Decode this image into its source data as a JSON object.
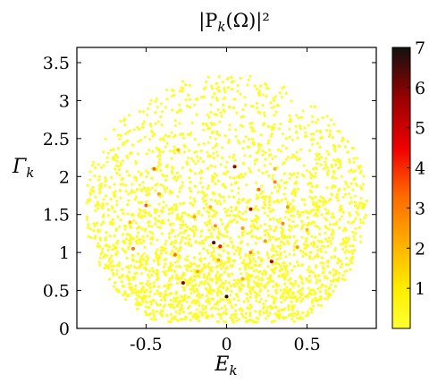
{
  "chart_data": {
    "type": "scatter",
    "title": "|P_k(Ω)|²",
    "xlabel": "E_k",
    "ylabel": "Γ_k",
    "xlim": [
      -0.93,
      0.93
    ],
    "ylim": [
      0,
      3.7
    ],
    "xticks": [
      -0.5,
      0,
      0.5
    ],
    "xtick_labels": [
      "-0.5",
      "0",
      "0.5"
    ],
    "yticks": [
      0,
      0.5,
      1,
      1.5,
      2,
      2.5,
      3,
      3.5
    ],
    "ytick_labels": [
      "0",
      "0.5",
      "1",
      "1.5",
      "2",
      "2.5",
      "3",
      "3.5"
    ],
    "grid": false,
    "colorbar": {
      "colormap": "hot_r",
      "range": [
        0,
        7
      ],
      "ticks": [
        1,
        2,
        3,
        4,
        5,
        6,
        7
      ],
      "tick_labels": [
        "1",
        "2",
        "3",
        "4",
        "5",
        "6",
        "7"
      ],
      "colors": [
        "#ffff33",
        "#ffee00",
        "#ffb000",
        "#ff6600",
        "#ee0000",
        "#990000",
        "#111111"
      ]
    },
    "highlighted_points": [
      {
        "x": 0.05,
        "y": 2.13,
        "value": 5.8
      },
      {
        "x": -0.45,
        "y": 2.1,
        "value": 3.5
      },
      {
        "x": 0.15,
        "y": 1.57,
        "value": 5.2
      },
      {
        "x": -0.08,
        "y": 1.13,
        "value": 6.5
      },
      {
        "x": -0.04,
        "y": 1.08,
        "value": 4.5
      },
      {
        "x": -0.27,
        "y": 0.6,
        "value": 6.0
      },
      {
        "x": 0.28,
        "y": 0.88,
        "value": 5.5
      },
      {
        "x": -0.32,
        "y": 0.97,
        "value": 3.2
      },
      {
        "x": 0.2,
        "y": 1.83,
        "value": 3.4
      },
      {
        "x": 0.3,
        "y": 1.93,
        "value": 3.0
      },
      {
        "x": -0.5,
        "y": 1.62,
        "value": 3.6
      },
      {
        "x": -0.58,
        "y": 1.05,
        "value": 3.2
      },
      {
        "x": 0.0,
        "y": 0.42,
        "value": 6.8
      },
      {
        "x": 0.1,
        "y": 1.32,
        "value": 2.6
      },
      {
        "x": -0.07,
        "y": 1.35,
        "value": 2.8
      },
      {
        "x": 0.35,
        "y": 1.38,
        "value": 2.9
      },
      {
        "x": 0.38,
        "y": 1.6,
        "value": 2.6
      },
      {
        "x": -0.42,
        "y": 1.77,
        "value": 2.5
      },
      {
        "x": 0.24,
        "y": 1.15,
        "value": 2.7
      },
      {
        "x": -0.18,
        "y": 0.75,
        "value": 2.4
      },
      {
        "x": -0.2,
        "y": 1.47,
        "value": 2.4
      },
      {
        "x": 0.44,
        "y": 1.07,
        "value": 2.6
      },
      {
        "x": 0.1,
        "y": 0.65,
        "value": 2.3
      },
      {
        "x": -0.3,
        "y": 2.35,
        "value": 2.2
      },
      {
        "x": 0.3,
        "y": 2.1,
        "value": 2.1
      },
      {
        "x": -0.6,
        "y": 1.4,
        "value": 2.0
      },
      {
        "x": 0.5,
        "y": 1.3,
        "value": 2.0
      },
      {
        "x": -0.1,
        "y": 1.6,
        "value": 2.2
      },
      {
        "x": 0.15,
        "y": 1.0,
        "value": 3.0
      },
      {
        "x": -0.05,
        "y": 0.9,
        "value": 2.5
      }
    ],
    "background_points_note": "",
    "background_value": 0.3
  }
}
